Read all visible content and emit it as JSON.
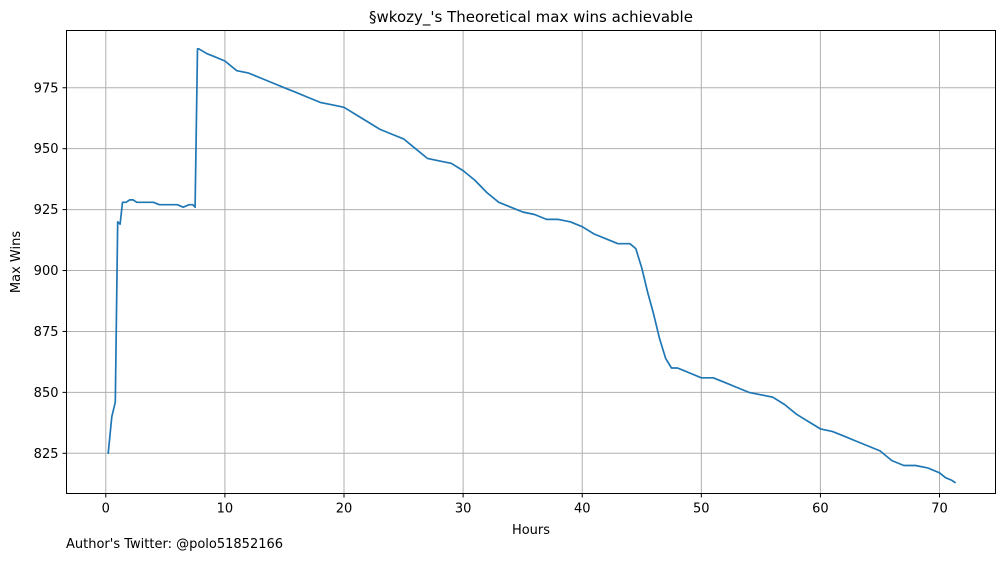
{
  "chart_data": {
    "type": "line",
    "title": "§wkozy_'s Theoretical max wins achievable",
    "xlabel": "Hours",
    "ylabel": "Max Wins",
    "xlim": [
      -3.3,
      74.7
    ],
    "ylim": [
      808.5,
      998.5
    ],
    "xticks": [
      0,
      10,
      20,
      30,
      40,
      50,
      60,
      70
    ],
    "yticks": [
      825,
      850,
      875,
      900,
      925,
      950,
      975
    ],
    "grid": true,
    "line_color": "#1f77b4",
    "series": [
      {
        "x": [
          0.2,
          0.5,
          0.8,
          1.0,
          1.2,
          1.4,
          1.7,
          2.0,
          2.3,
          2.6,
          3.0,
          3.5,
          4.0,
          4.5,
          5.0,
          5.5,
          6.0,
          6.5,
          7.0,
          7.3,
          7.5,
          7.7,
          7.8,
          8.5,
          9.0,
          10.0,
          11.0,
          12.0,
          13.0,
          14.0,
          15.0,
          16.0,
          17.0,
          18.0,
          19.0,
          20.0,
          21.0,
          22.0,
          23.0,
          24.0,
          25.0,
          26.0,
          27.0,
          28.0,
          29.0,
          30.0,
          31.0,
          32.0,
          33.0,
          34.0,
          35.0,
          36.0,
          37.0,
          38.0,
          39.0,
          40.0,
          41.0,
          42.0,
          43.0,
          44.0,
          44.5,
          45.0,
          45.5,
          46.0,
          46.5,
          47.0,
          47.5,
          48.0,
          48.5,
          49.0,
          50.0,
          51.0,
          52.0,
          53.0,
          54.0,
          55.0,
          56.0,
          57.0,
          58.0,
          59.0,
          60.0,
          61.0,
          62.0,
          63.0,
          64.0,
          65.0,
          66.0,
          67.0,
          68.0,
          69.0,
          70.0,
          70.5,
          71.0,
          71.3
        ],
        "y": [
          825,
          840,
          846,
          920,
          919,
          928,
          928,
          929,
          929,
          928,
          928,
          928,
          928,
          927,
          927,
          927,
          927,
          926,
          927,
          927,
          926,
          991,
          991,
          989,
          988,
          986,
          982,
          981,
          979,
          977,
          975,
          973,
          971,
          969,
          968,
          967,
          964,
          961,
          958,
          956,
          954,
          950,
          946,
          945,
          944,
          941,
          937,
          932,
          928,
          926,
          924,
          923,
          921,
          921,
          920,
          918,
          915,
          913,
          911,
          911,
          909,
          901,
          891,
          882,
          872,
          864,
          860,
          860,
          859,
          858,
          856,
          856,
          854,
          852,
          850,
          849,
          848,
          845,
          841,
          838,
          835,
          834,
          832,
          830,
          828,
          826,
          822,
          820,
          820,
          819,
          817,
          815,
          814,
          813
        ]
      }
    ]
  },
  "footnote": "Author's Twitter: @polo51852166"
}
